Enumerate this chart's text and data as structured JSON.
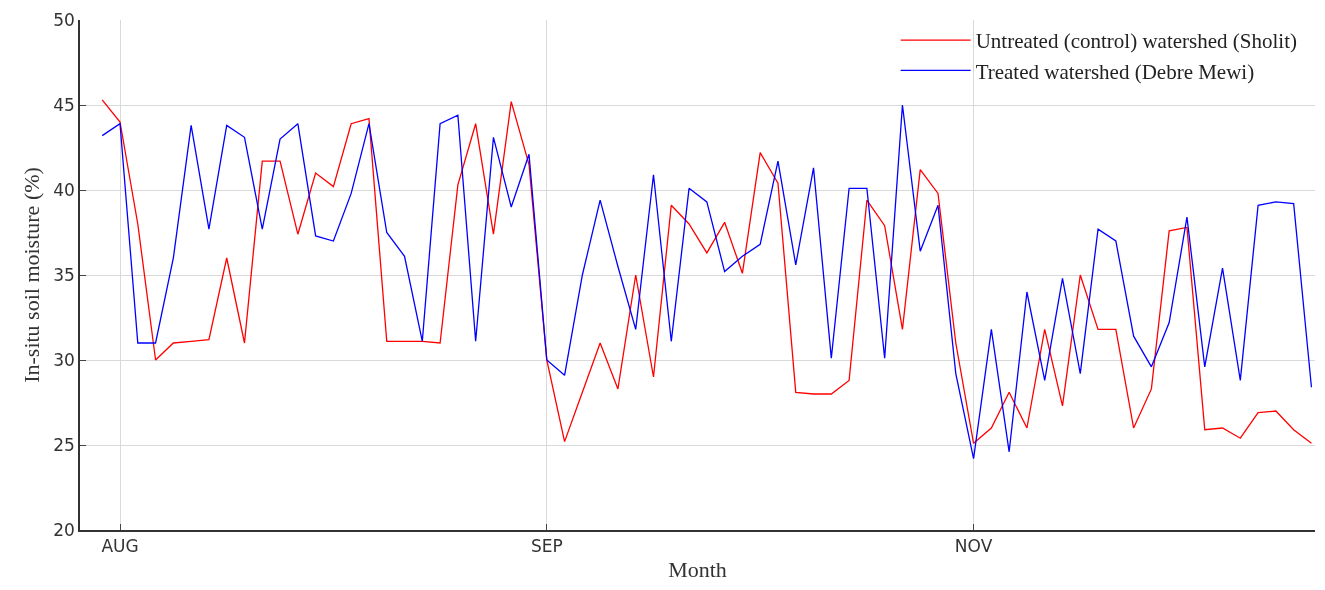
{
  "chart_data": {
    "type": "line",
    "xlabel": "Month",
    "ylabel": "In-situ soil moisture (%)",
    "categories": [
      null,
      "AUG",
      null,
      null,
      null,
      null,
      null,
      null,
      null,
      null,
      null,
      null,
      null,
      null,
      null,
      null,
      null,
      null,
      null,
      null,
      null,
      null,
      null,
      null,
      null,
      "SEP",
      null,
      null,
      null,
      null,
      null,
      null,
      null,
      null,
      null,
      null,
      null,
      null,
      null,
      null,
      null,
      null,
      null,
      null,
      null,
      null,
      null,
      null,
      null,
      "NOV",
      null,
      null,
      null,
      null,
      null,
      null,
      null,
      null,
      null,
      null,
      null,
      null,
      null,
      null,
      null,
      null,
      null,
      null,
      null
    ],
    "series": [
      {
        "name": "Untreated (control) watershed (Sholit)",
        "color": "#ff0000",
        "values": [
          45.3,
          44,
          38,
          30,
          31,
          31.1,
          31.2,
          36,
          31,
          41.7,
          41.7,
          37.4,
          41,
          40.2,
          43.9,
          44.2,
          31.1,
          31.1,
          31.1,
          31,
          40.3,
          43.9,
          37.4,
          45.2,
          41.5,
          30,
          25.2,
          28.1,
          31,
          28.3,
          35,
          29,
          39.1,
          38,
          36.3,
          38.1,
          35.1,
          42.2,
          40.4,
          28.1,
          28,
          28,
          28.8,
          39.4,
          37.9,
          31.8,
          41.2,
          39.8,
          31,
          25.1,
          26,
          28.1,
          26,
          31.8,
          27.3,
          35,
          31.8,
          31.8,
          26,
          28.3,
          37.6,
          37.8,
          25.9,
          26,
          25.4,
          26.9,
          27,
          25.9,
          25.1
        ]
      },
      {
        "name": "Treated watershed (Debre Mewi)",
        "color": "#0000ff",
        "values": [
          43.2,
          43.9,
          31,
          31,
          36,
          43.8,
          37.7,
          43.8,
          43.1,
          37.7,
          43,
          43.9,
          37.3,
          37,
          39.8,
          43.9,
          37.5,
          36.1,
          31.1,
          43.9,
          44.4,
          31.1,
          43.1,
          39,
          42.1,
          30,
          29.1,
          35,
          39.4,
          35.5,
          31.8,
          40.9,
          31.1,
          40.1,
          39.3,
          35.2,
          36.1,
          36.8,
          41.7,
          35.6,
          41.3,
          30.1,
          40.1,
          40.1,
          30.1,
          45,
          36.4,
          39.1,
          29.2,
          24.2,
          31.8,
          24.6,
          34,
          28.8,
          34.8,
          29.2,
          37.7,
          37,
          31.4,
          29.6,
          32.2,
          38.4,
          29.6,
          35.4,
          28.8,
          39.1,
          39.3,
          39.2,
          28.4
        ]
      }
    ],
    "ylim": [
      20,
      50
    ],
    "yticks": [
      20,
      25,
      30,
      35,
      40,
      45,
      50
    ],
    "grid": true,
    "legend": "top right",
    "marker": "none",
    "line_style": "solid"
  }
}
